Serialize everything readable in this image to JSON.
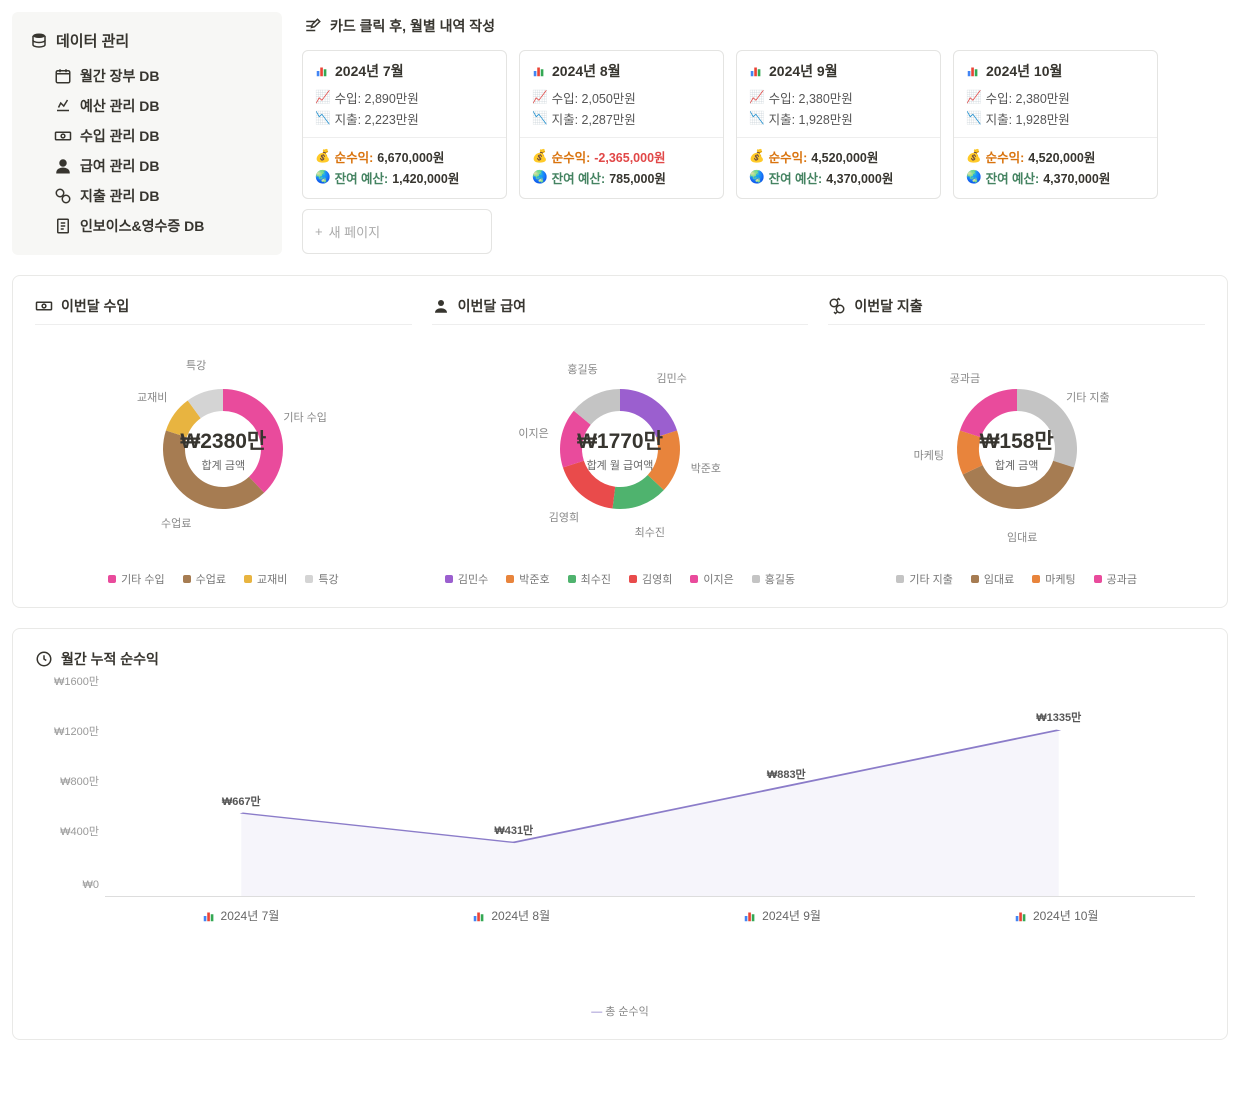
{
  "sidebar": {
    "title": "데이터 관리",
    "items": [
      {
        "label": "월간 장부 DB",
        "icon": "calendar"
      },
      {
        "label": "예산 관리 DB",
        "icon": "budget"
      },
      {
        "label": "수입 관리 DB",
        "icon": "income"
      },
      {
        "label": "급여 관리 DB",
        "icon": "person"
      },
      {
        "label": "지출 관리 DB",
        "icon": "expense"
      },
      {
        "label": "인보이스&영수증 DB",
        "icon": "receipt"
      }
    ]
  },
  "section_title": "카드 클릭 후, 월별 내역 작성",
  "cards": [
    {
      "title": "2024년 7월",
      "income_label": "수입:",
      "income": "2,890만원",
      "expense_label": "지출:",
      "expense": "2,223만원",
      "profit_label": "순수익:",
      "profit": "6,670,000원",
      "profit_neg": false,
      "budget_label": "잔여 예산:",
      "budget": "1,420,000원"
    },
    {
      "title": "2024년 8월",
      "income_label": "수입:",
      "income": "2,050만원",
      "expense_label": "지출:",
      "expense": "2,287만원",
      "profit_label": "순수익:",
      "profit": "-2,365,000원",
      "profit_neg": true,
      "budget_label": "잔여 예산:",
      "budget": "785,000원"
    },
    {
      "title": "2024년 9월",
      "income_label": "수입:",
      "income": "2,380만원",
      "expense_label": "지출:",
      "expense": "1,928만원",
      "profit_label": "순수익:",
      "profit": "4,520,000원",
      "profit_neg": false,
      "budget_label": "잔여 예산:",
      "budget": "4,370,000원"
    },
    {
      "title": "2024년 10월",
      "income_label": "수입:",
      "income": "2,380만원",
      "expense_label": "지출:",
      "expense": "1,928만원",
      "profit_label": "순수익:",
      "profit": "4,520,000원",
      "profit_neg": false,
      "budget_label": "잔여 예산:",
      "budget": "4,370,000원"
    }
  ],
  "new_page": "새 페이지",
  "charts": {
    "income": {
      "title": "이번달 수입",
      "center_val": "₩2380만",
      "center_sub": "합계 금액",
      "slices": [
        {
          "label": "기타 수입",
          "color": "#e94b9c",
          "pct": 38
        },
        {
          "label": "수업료",
          "color": "#a67c52",
          "pct": 42
        },
        {
          "label": "교재비",
          "color": "#e8b440",
          "pct": 10
        },
        {
          "label": "특강",
          "color": "#d4d4d4",
          "pct": 10
        }
      ]
    },
    "salary": {
      "title": "이번달 급여",
      "center_val": "₩1770만",
      "center_sub": "합계 월 급여액",
      "slices": [
        {
          "label": "김민수",
          "color": "#9b5fcf",
          "pct": 20
        },
        {
          "label": "박준호",
          "color": "#e8843c",
          "pct": 17
        },
        {
          "label": "최수진",
          "color": "#4fb36e",
          "pct": 15
        },
        {
          "label": "김영희",
          "color": "#e94b4b",
          "pct": 18
        },
        {
          "label": "이지은",
          "color": "#e94b9c",
          "pct": 16
        },
        {
          "label": "홍길동",
          "color": "#c4c4c4",
          "pct": 14
        }
      ]
    },
    "expense": {
      "title": "이번달 지출",
      "center_val": "₩158만",
      "center_sub": "합계 금액",
      "slices": [
        {
          "label": "기타 지출",
          "color": "#c4c4c4",
          "pct": 30
        },
        {
          "label": "임대료",
          "color": "#a67c52",
          "pct": 38
        },
        {
          "label": "마케팅",
          "color": "#e8843c",
          "pct": 12
        },
        {
          "label": "공과금",
          "color": "#e94b9c",
          "pct": 20
        }
      ]
    }
  },
  "line_chart": {
    "title": "월간 누적 순수익",
    "legend": "총 순수익",
    "color": "#8b7cc9",
    "y_ticks": [
      "₩0",
      "₩400만",
      "₩800만",
      "₩1200만",
      "₩1600만"
    ],
    "y_max": 1600,
    "points": [
      {
        "x": "2024년 7월",
        "y": 667,
        "label": "₩667만"
      },
      {
        "x": "2024년 8월",
        "y": 431,
        "label": "₩431만"
      },
      {
        "x": "2024년 9월",
        "y": 883,
        "label": "₩883만"
      },
      {
        "x": "2024년 10월",
        "y": 1335,
        "label": "₩1335만"
      }
    ]
  },
  "icons": {
    "chart_ico": "📊",
    "income_emoji": "📈",
    "expense_emoji": "📉",
    "moneybag": "💰",
    "globe": "🌏"
  }
}
